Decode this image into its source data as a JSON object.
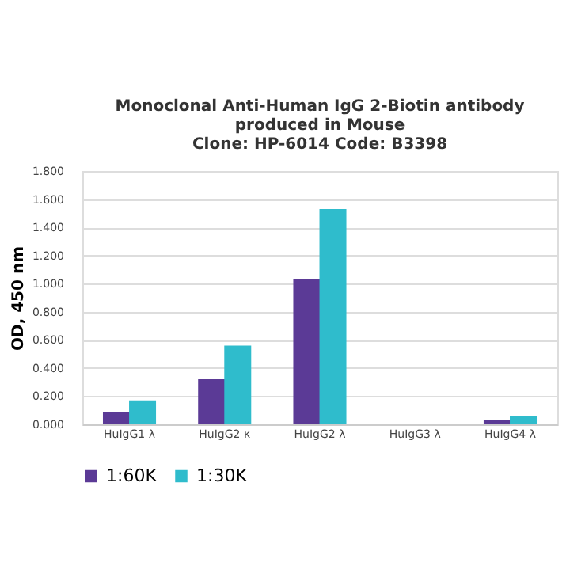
{
  "chart_data": {
    "type": "bar",
    "title": [
      "Monoclonal Anti-Human IgG 2-Biotin antibody",
      "produced in Mouse",
      "Clone: HP-6014  Code: B3398"
    ],
    "ylabel": "OD, 450 nm",
    "categories": [
      "HuIgG1 λ",
      "HuIgG2 κ",
      "HuIgG2 λ",
      "HuIgG3 λ",
      "HuIgG4 λ"
    ],
    "series": [
      {
        "name": "1:60K",
        "color": "#5b3a96",
        "values": [
          0.09,
          0.32,
          1.03,
          0,
          0.03
        ]
      },
      {
        "name": "1:30K",
        "color": "#2fbccc",
        "values": [
          0.17,
          0.56,
          1.53,
          0,
          0.06
        ]
      }
    ],
    "ylim": [
      0,
      1.8
    ],
    "yticks": [
      {
        "value": 0,
        "label": "0.000"
      },
      {
        "value": 0.2,
        "label": "0.200"
      },
      {
        "value": 0.4,
        "label": "0.400"
      },
      {
        "value": 0.6,
        "label": "0.600"
      },
      {
        "value": 0.8,
        "label": "0.800"
      },
      {
        "value": 1.0,
        "label": "1.000"
      },
      {
        "value": 1.2,
        "label": "1.200"
      },
      {
        "value": 1.4,
        "label": "1.400"
      },
      {
        "value": 1.6,
        "label": "1.600"
      },
      {
        "value": 1.8,
        "label": "1.800"
      }
    ],
    "grid": "y",
    "legend": "bottom"
  }
}
